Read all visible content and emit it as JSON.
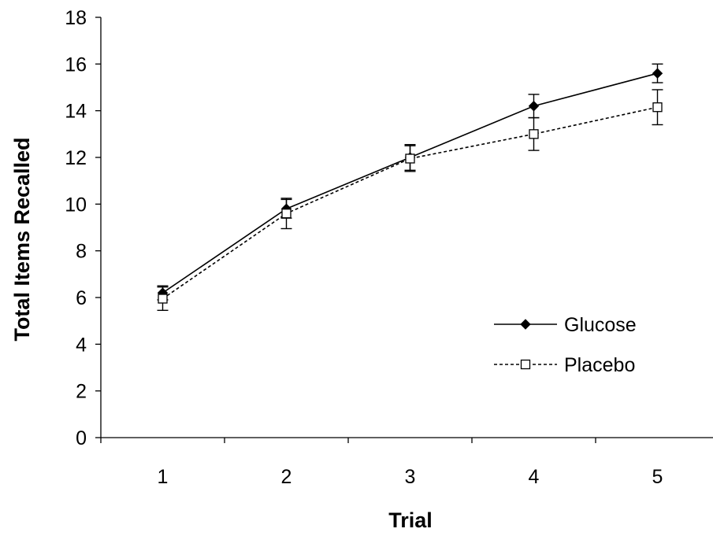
{
  "chart_data": {
    "type": "line",
    "title": "",
    "xlabel": "Trial",
    "ylabel": "Total Items Recalled",
    "categories": [
      "1",
      "2",
      "3",
      "4",
      "5"
    ],
    "ylim": [
      0,
      18
    ],
    "yticks": [
      0,
      2,
      4,
      6,
      8,
      10,
      12,
      14,
      16,
      18
    ],
    "grid": false,
    "legend_position": "right",
    "series": [
      {
        "name": "Glucose",
        "marker": "filled-diamond",
        "line_style": "solid",
        "color": "#000000",
        "values": [
          6.2,
          9.8,
          12.0,
          14.2,
          15.6
        ],
        "error": [
          0.3,
          0.4,
          0.55,
          0.5,
          0.4
        ]
      },
      {
        "name": "Placebo",
        "marker": "open-square",
        "line_style": "dashed",
        "color": "#000000",
        "values": [
          5.95,
          9.6,
          11.95,
          13.0,
          14.15
        ],
        "error": [
          0.5,
          0.65,
          0.55,
          0.7,
          0.75
        ]
      }
    ]
  }
}
